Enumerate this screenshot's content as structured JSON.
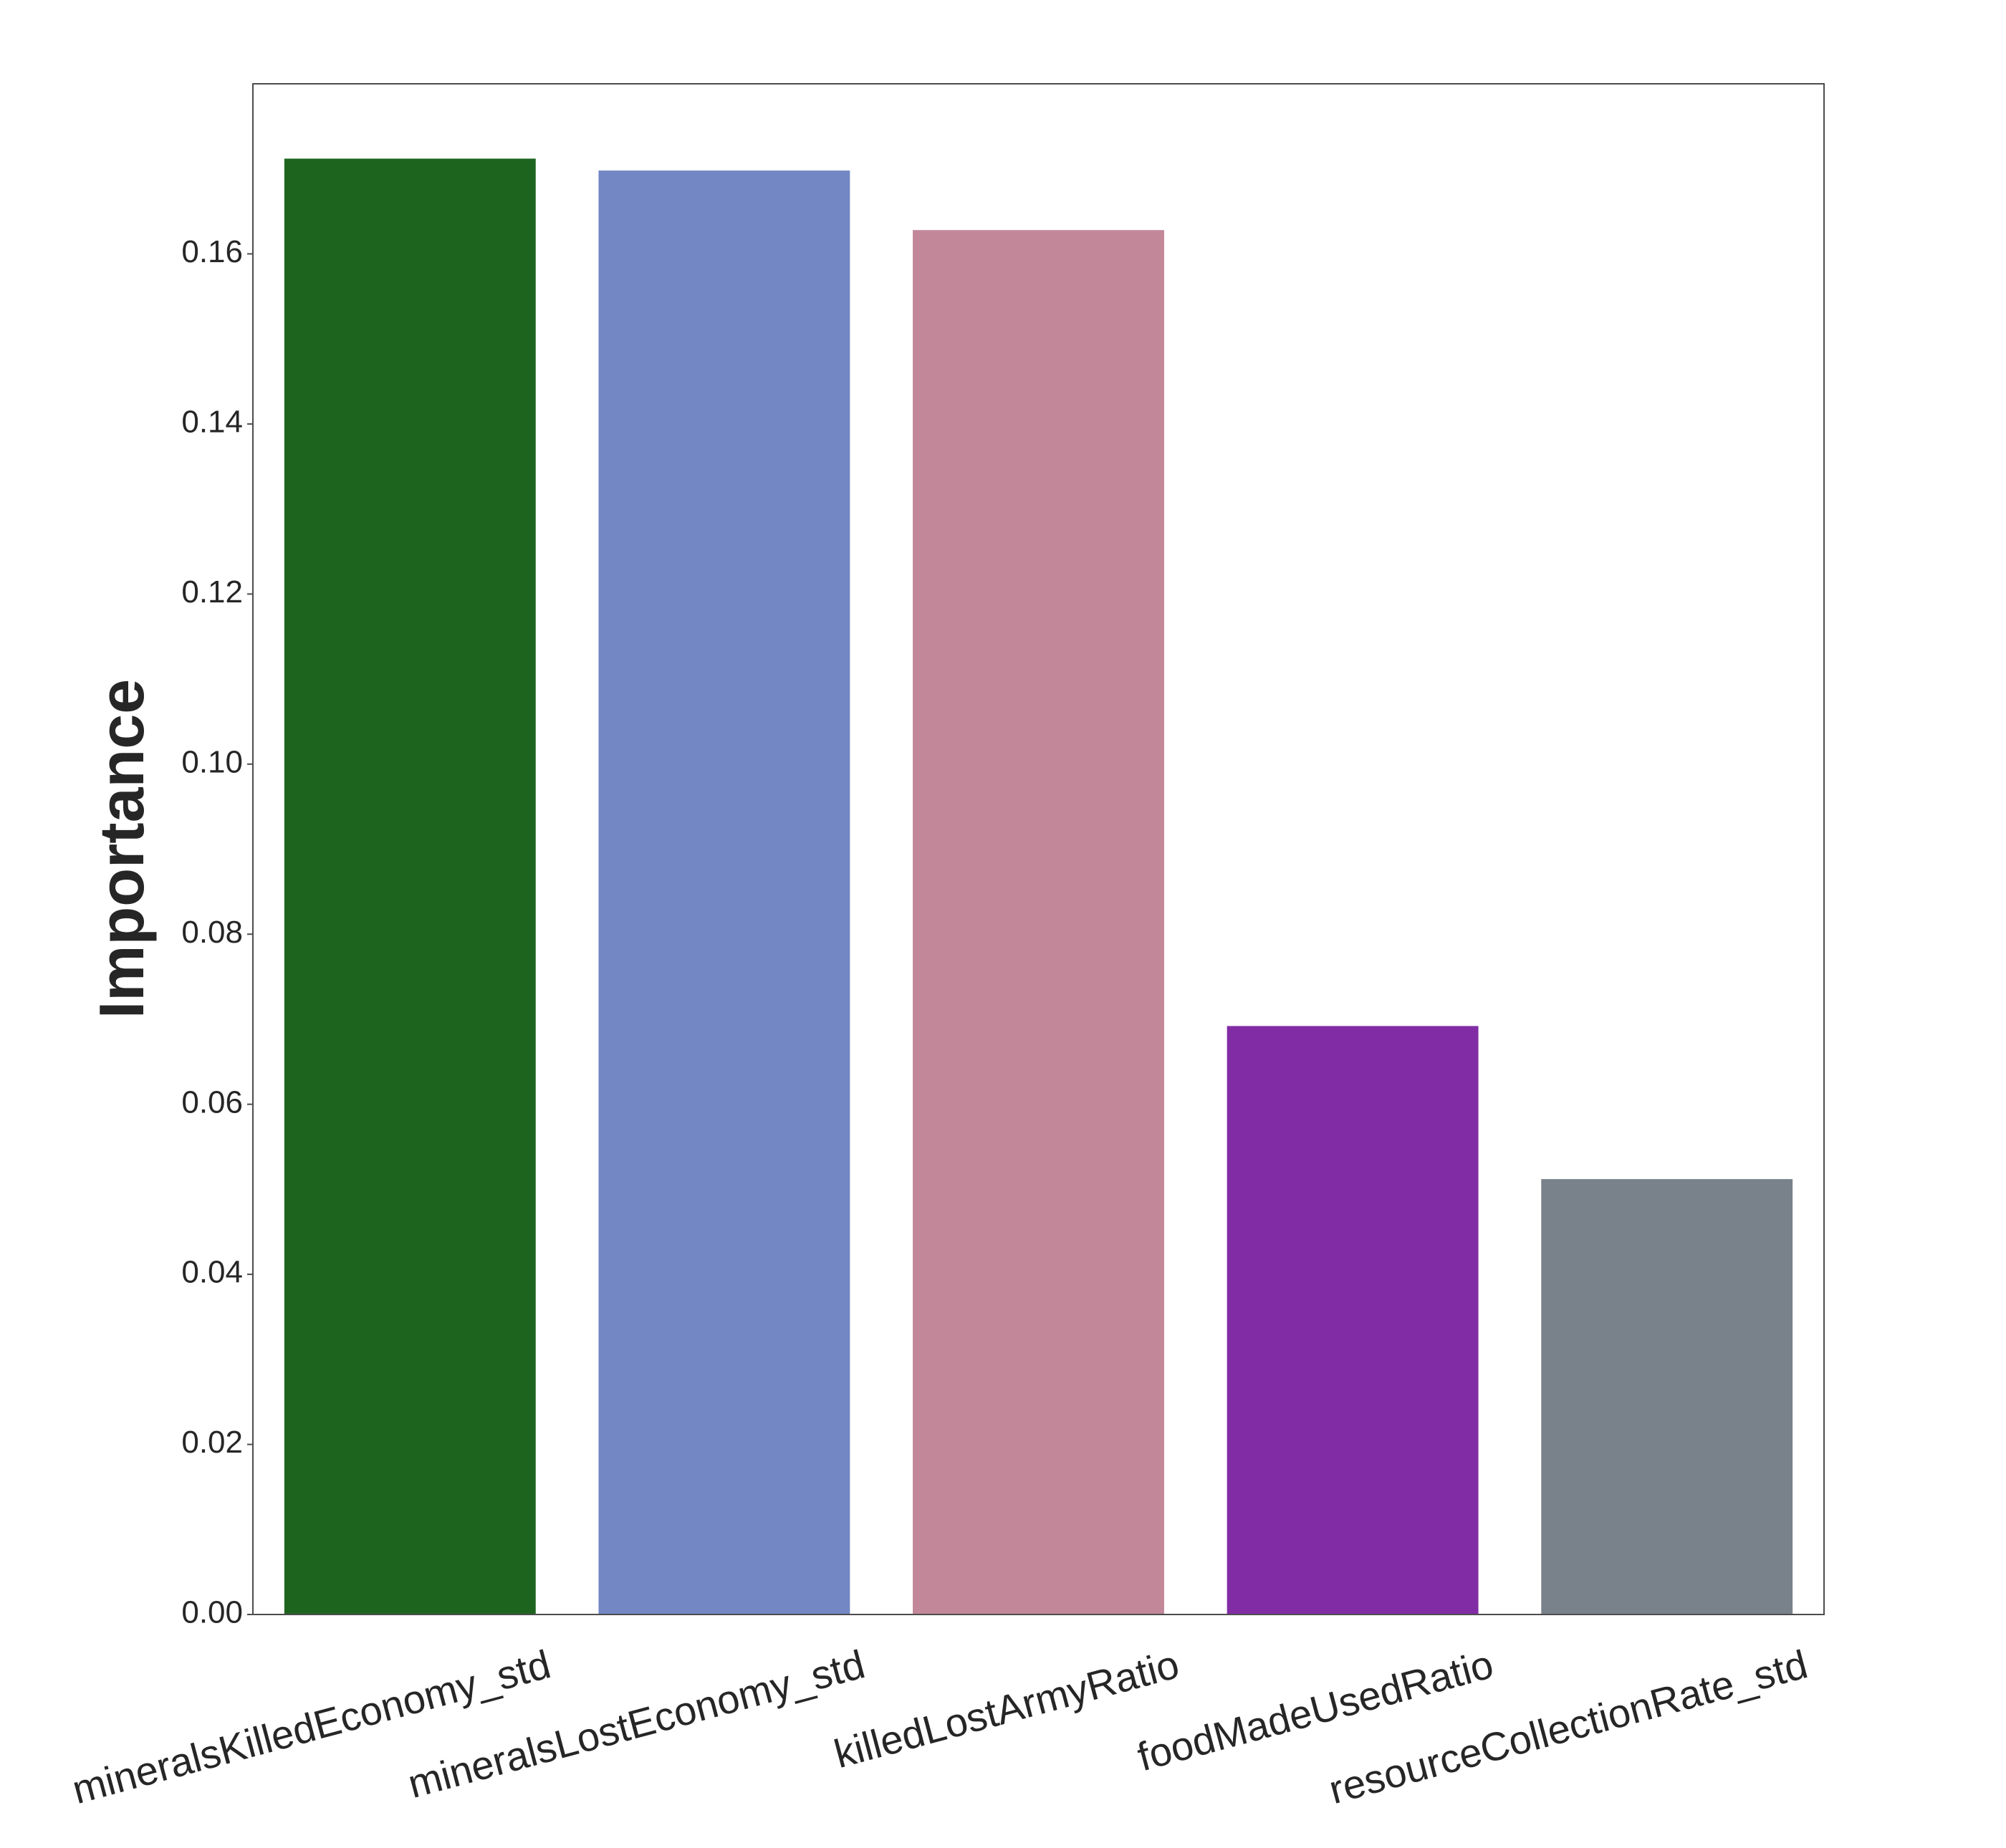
{
  "chart_data": {
    "type": "bar",
    "categories": [
      "mineralsKilledEconomy_std",
      "mineralsLostEconomy_std",
      "killedLostArmyRatio",
      "foodMadeUsedRatio",
      "resourceCollectionRate_std"
    ],
    "values": [
      0.1712,
      0.1698,
      0.1628,
      0.0692,
      0.0512
    ],
    "colors": [
      "#1d651e",
      "#7287c4",
      "#c28799",
      "#812ca5",
      "#79828a"
    ],
    "xlabel": "",
    "ylabel": "Importance",
    "ylim": [
      0,
      0.18
    ],
    "yticks": [
      "0.00",
      "0.02",
      "0.04",
      "0.06",
      "0.08",
      "0.10",
      "0.12",
      "0.14",
      "0.16"
    ],
    "grid": false,
    "legend": "none"
  }
}
